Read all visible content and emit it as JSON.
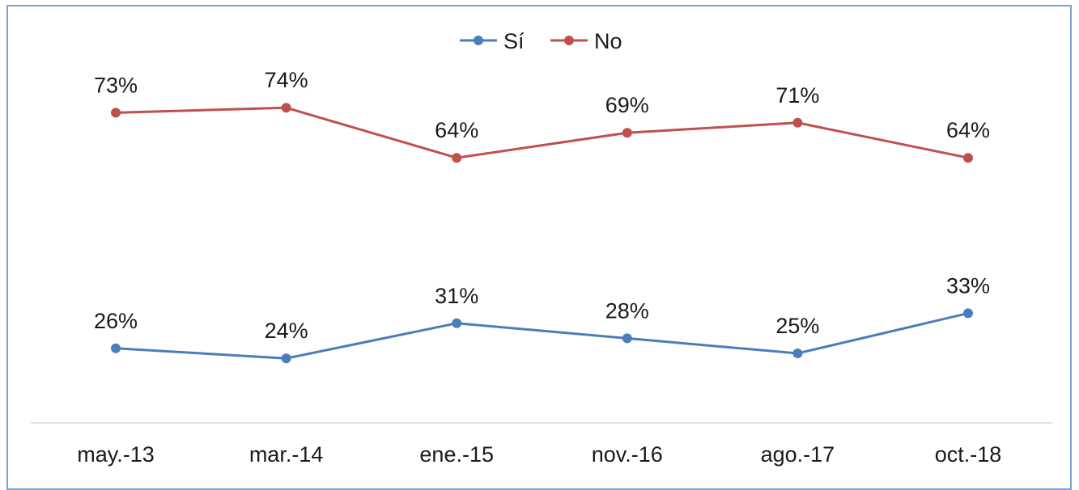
{
  "chart_data": {
    "type": "line",
    "categories": [
      "may.-13",
      "mar.-14",
      "ene.-15",
      "nov.-16",
      "ago.-17",
      "oct.-18"
    ],
    "series": [
      {
        "name": "Sí",
        "color": "#4a7ebb",
        "values": [
          26,
          24,
          31,
          28,
          25,
          33
        ],
        "labels": [
          "26%",
          "24%",
          "31%",
          "28%",
          "25%",
          "33%"
        ]
      },
      {
        "name": "No",
        "color": "#c0504d",
        "values": [
          73,
          74,
          64,
          69,
          71,
          64
        ],
        "labels": [
          "73%",
          "74%",
          "64%",
          "69%",
          "71%",
          "64%"
        ]
      }
    ],
    "ylim": [
      0,
      100
    ],
    "grid": false,
    "legend": "top-center",
    "axis_line_color": "#d9d9d9"
  }
}
